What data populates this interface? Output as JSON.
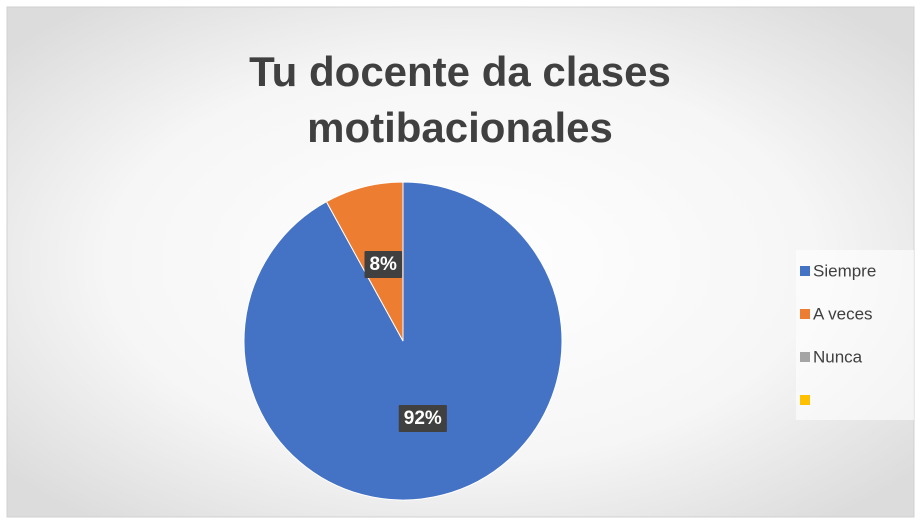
{
  "chart_data": {
    "type": "pie",
    "title": "Tu docente da clases motibacionales",
    "categories": [
      "Siempre",
      "A veces",
      "Nunca",
      null
    ],
    "values": [
      92,
      8,
      0,
      0
    ],
    "value_labels": [
      "92%",
      "8%",
      null,
      null
    ],
    "colors": [
      "#4472c4",
      "#ed7d31",
      "#a5a5a5",
      "#ffc000"
    ],
    "legend": "right"
  }
}
